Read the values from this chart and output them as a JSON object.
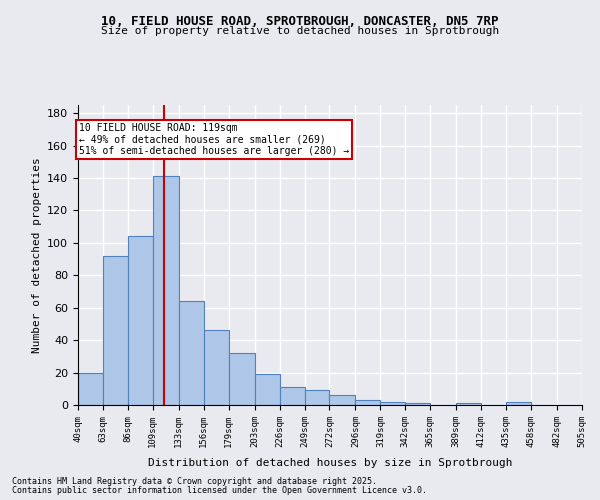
{
  "title1": "10, FIELD HOUSE ROAD, SPROTBROUGH, DONCASTER, DN5 7RP",
  "title2": "Size of property relative to detached houses in Sprotbrough",
  "xlabel": "Distribution of detached houses by size in Sprotbrough",
  "ylabel": "Number of detached properties",
  "bin_edges": [
    40,
    63,
    86,
    109,
    133,
    156,
    179,
    203,
    226,
    249,
    272,
    296,
    319,
    342,
    365,
    389,
    412,
    435,
    458,
    482,
    505
  ],
  "bin_labels": [
    "40sqm",
    "63sqm",
    "86sqm",
    "109sqm",
    "133sqm",
    "156sqm",
    "179sqm",
    "203sqm",
    "226sqm",
    "249sqm",
    "272sqm",
    "296sqm",
    "319sqm",
    "342sqm",
    "365sqm",
    "389sqm",
    "412sqm",
    "435sqm",
    "458sqm",
    "482sqm",
    "505sqm"
  ],
  "bar_counts": [
    20,
    92,
    104,
    141,
    64,
    46,
    32,
    19,
    11,
    9,
    6,
    3,
    2,
    1,
    0,
    1,
    0,
    2,
    0,
    0
  ],
  "bar_color": "#aec6e8",
  "bar_edge_color": "#4f81bd",
  "background_color": "#e8eaf0",
  "grid_color": "#ffffff",
  "vline_x": 119,
  "vline_color": "#cc0000",
  "annotation_text": "10 FIELD HOUSE ROAD: 119sqm\n← 49% of detached houses are smaller (269)\n51% of semi-detached houses are larger (280) →",
  "annotation_box_color": "#ffffff",
  "annotation_box_edge": "#cc0000",
  "footer1": "Contains HM Land Registry data © Crown copyright and database right 2025.",
  "footer2": "Contains public sector information licensed under the Open Government Licence v3.0.",
  "ylim": [
    0,
    185
  ],
  "yticks": [
    0,
    20,
    40,
    60,
    80,
    100,
    120,
    140,
    160,
    180
  ]
}
